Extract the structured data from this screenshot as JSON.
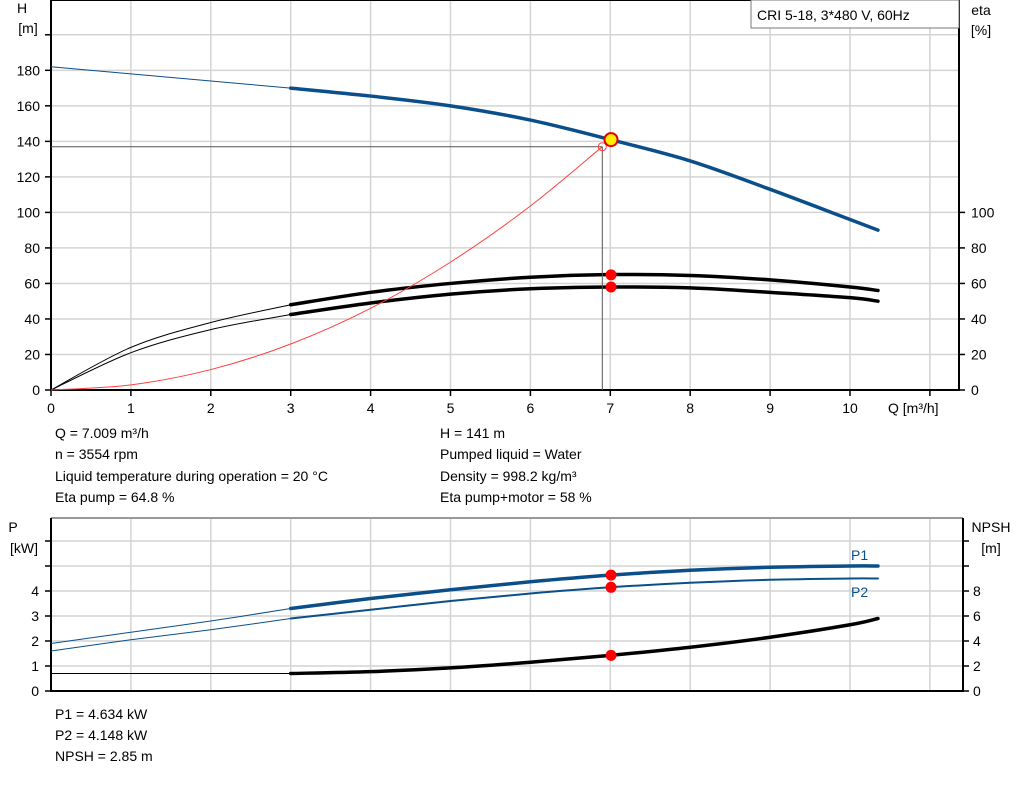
{
  "colors": {
    "blue": "#0b4f8a",
    "black": "#000000",
    "system": "#ff4040",
    "point": "#ff0000",
    "duty_fill": "#ffee00",
    "duty_stroke": "#e00000"
  },
  "legend_box": "CRI 5-18, 3*480 V, 60Hz",
  "info_top": {
    "left": [
      "Q = 7.009 m³/h",
      "n = 3554 rpm",
      "Liquid temperature during operation = 20 °C",
      "Eta pump = 64.8 %"
    ],
    "right": [
      "H = 141 m",
      "Pumped liquid = Water",
      "Density = 998.2 kg/m³",
      "Eta pump+motor = 58 %"
    ]
  },
  "info_bottom": [
    "P1 = 4.634 kW",
    "P2 = 4.148 kW",
    "NPSH = 2.85 m"
  ],
  "chart_data": [
    {
      "type": "line",
      "xlabel": "Q [m³/h]",
      "ylabel_left": "H",
      "ylabel_left_unit": "[m]",
      "ylabel_right": "eta",
      "ylabel_right_unit": "[%]",
      "xlim": [
        0,
        11.3
      ],
      "ylim": [
        0,
        200
      ],
      "x_ticks": [
        "0",
        "1",
        "2",
        "3",
        "4",
        "5",
        "6",
        "7",
        "8",
        "9",
        "10"
      ],
      "y_ticks_left": [
        "0",
        "20",
        "40",
        "60",
        "80",
        "100",
        "120",
        "140",
        "160",
        "180"
      ],
      "y_ticks_right": [
        "0",
        "20",
        "40",
        "60",
        "80",
        "100"
      ],
      "grid": true,
      "series": [
        {
          "key": "H",
          "axis": "H",
          "color": "blue",
          "thin_until": 3,
          "points": [
            [
              0,
              182
            ],
            [
              1,
              178
            ],
            [
              2,
              174
            ],
            [
              3,
              170
            ],
            [
              4,
              165.5
            ],
            [
              5,
              160
            ],
            [
              6,
              152
            ],
            [
              7,
              141
            ],
            [
              8,
              129
            ],
            [
              9,
              113
            ],
            [
              10,
              96
            ],
            [
              10.35,
              90
            ]
          ]
        },
        {
          "key": "eta_pump",
          "axis": "eta",
          "color": "black",
          "thin_until": 3,
          "points": [
            [
              0,
              0
            ],
            [
              1,
              24
            ],
            [
              2,
              38
            ],
            [
              3,
              48
            ],
            [
              4,
              55
            ],
            [
              5,
              60
            ],
            [
              6,
              63.5
            ],
            [
              7,
              65
            ],
            [
              8,
              64.5
            ],
            [
              9,
              62
            ],
            [
              10,
              58
            ],
            [
              10.35,
              56
            ]
          ]
        },
        {
          "key": "eta_pump_motor",
          "axis": "eta",
          "color": "black",
          "thin_until": 3,
          "points": [
            [
              0,
              0
            ],
            [
              1,
              21
            ],
            [
              2,
              34
            ],
            [
              3,
              42.5
            ],
            [
              4,
              49
            ],
            [
              5,
              54
            ],
            [
              6,
              57
            ],
            [
              7,
              58
            ],
            [
              8,
              57.5
            ],
            [
              9,
              55
            ],
            [
              10,
              52
            ],
            [
              10.35,
              50
            ]
          ]
        },
        {
          "key": "system",
          "axis": "H",
          "color": "system",
          "thin_until": 99,
          "points": [
            [
              0,
              0
            ],
            [
              1,
              2.9
            ],
            [
              2,
              11.5
            ],
            [
              3,
              25.9
            ],
            [
              4,
              46
            ],
            [
              5,
              72
            ],
            [
              6,
              103.6
            ],
            [
              6.9,
              137
            ]
          ]
        }
      ],
      "operating_lines": {
        "q": 6.9,
        "h": 137
      },
      "duty_point": {
        "q": 7.009,
        "h": 141
      },
      "markers": [
        {
          "q": 7.009,
          "eta": 64.8
        },
        {
          "q": 7.009,
          "eta": 58
        }
      ]
    },
    {
      "type": "line",
      "ylabel_left": "P",
      "ylabel_left_unit": "[kW]",
      "ylabel_right": "NPSH",
      "ylabel_right_unit": "[m]",
      "xlim": [
        0,
        11.3
      ],
      "ylim": [
        0,
        7
      ],
      "y_ticks_left": [
        "0",
        "1",
        "2",
        "3",
        "4"
      ],
      "y_ticks_right": [
        "0",
        "2",
        "4",
        "6",
        "8"
      ],
      "grid": true,
      "series": [
        {
          "key": "P1",
          "name": "P1",
          "axis": "P",
          "color": "blue",
          "thin_until": 3,
          "points": [
            [
              0,
              1.9
            ],
            [
              1,
              2.35
            ],
            [
              2,
              2.8
            ],
            [
              3,
              3.3
            ],
            [
              4,
              3.7
            ],
            [
              5,
              4.05
            ],
            [
              6,
              4.37
            ],
            [
              7,
              4.634
            ],
            [
              8,
              4.83
            ],
            [
              9,
              4.95
            ],
            [
              10,
              5.0
            ],
            [
              10.35,
              5.0
            ]
          ]
        },
        {
          "key": "P2",
          "name": "P2",
          "axis": "P",
          "color": "blue",
          "thin_until": 3,
          "points": [
            [
              0,
              1.6
            ],
            [
              1,
              2.05
            ],
            [
              2,
              2.45
            ],
            [
              3,
              2.9
            ],
            [
              4,
              3.25
            ],
            [
              5,
              3.6
            ],
            [
              6,
              3.9
            ],
            [
              7,
              4.148
            ],
            [
              8,
              4.33
            ],
            [
              9,
              4.45
            ],
            [
              10,
              4.5
            ],
            [
              10.35,
              4.5
            ]
          ]
        },
        {
          "key": "NPSH",
          "axis": "NPSH",
          "color": "black",
          "thin_until": 3,
          "points": [
            [
              0,
              1.4
            ],
            [
              1,
              1.4
            ],
            [
              2,
              1.4
            ],
            [
              3,
              1.4
            ],
            [
              4,
              1.55
            ],
            [
              5,
              1.85
            ],
            [
              6,
              2.3
            ],
            [
              7,
              2.85
            ],
            [
              8,
              3.5
            ],
            [
              9,
              4.3
            ],
            [
              10,
              5.3
            ],
            [
              10.35,
              5.8
            ]
          ]
        }
      ],
      "markers": [
        {
          "q": 7.009,
          "P": 4.634
        },
        {
          "q": 7.009,
          "P": 4.148
        },
        {
          "q": 7.009,
          "NPSH": 2.85
        }
      ]
    }
  ]
}
